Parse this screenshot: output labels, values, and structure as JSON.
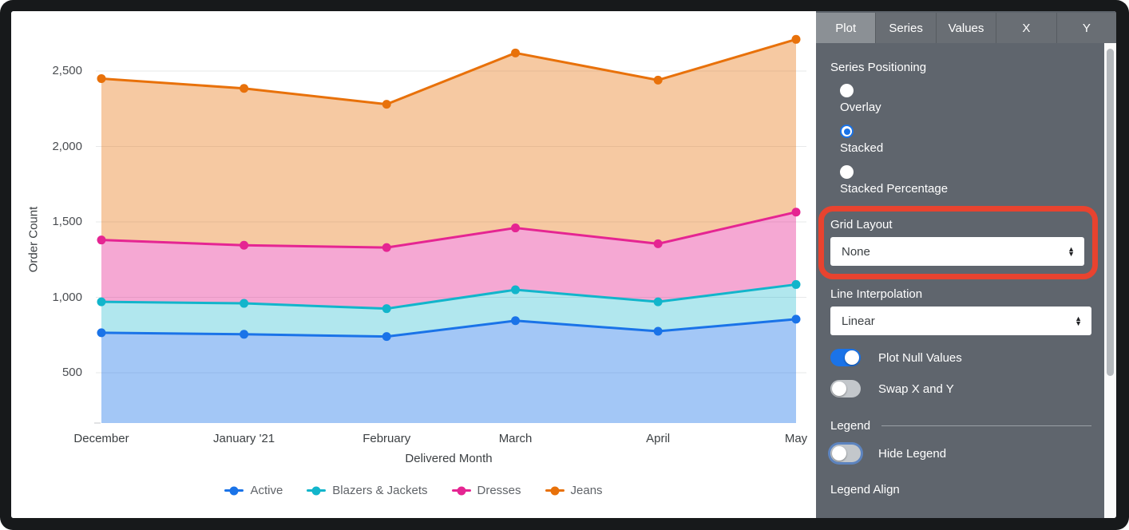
{
  "colors": {
    "accent_blue": "#1a73e8",
    "panel_bg": "#5f656d",
    "highlight_red": "#e8432f",
    "gridline": "#e7e8ea",
    "axis_text": "#3c4043"
  },
  "chart_data": {
    "type": "area",
    "stacked": true,
    "title": "",
    "xlabel": "Delivered Month",
    "ylabel": "Order Count",
    "x": [
      "December",
      "January '21",
      "February",
      "March",
      "April",
      "May"
    ],
    "x_day_offsets": [
      0,
      31,
      62,
      90,
      121,
      151
    ],
    "y_ticks": [
      500,
      1000,
      1500,
      2000,
      2500
    ],
    "ylim": [
      185,
      2780
    ],
    "grid": true,
    "legend_position": "bottom",
    "series": [
      {
        "name": "Active",
        "color": "#1a73e8",
        "fill": "rgba(26,115,232,0.40)",
        "values": [
          765,
          755,
          740,
          845,
          775,
          855
        ]
      },
      {
        "name": "Blazers & Jackets",
        "color": "#12b5cb",
        "fill": "rgba(18,181,203,0.33)",
        "values": [
          205,
          205,
          185,
          205,
          195,
          230
        ]
      },
      {
        "name": "Dresses",
        "color": "#e52592",
        "fill": "rgba(229,37,146,0.40)",
        "values": [
          410,
          385,
          405,
          410,
          385,
          480
        ]
      },
      {
        "name": "Jeans",
        "color": "#e8710a",
        "fill": "rgba(232,113,10,0.38)",
        "values": [
          1070,
          1040,
          950,
          1160,
          1085,
          1145
        ]
      }
    ],
    "stacked_totals": [
      2450,
      2385,
      2280,
      2620,
      2440,
      2710
    ]
  },
  "panel": {
    "tabs": [
      {
        "label": "Plot",
        "active": true
      },
      {
        "label": "Series",
        "active": false
      },
      {
        "label": "Values",
        "active": false
      },
      {
        "label": "X",
        "active": false
      },
      {
        "label": "Y",
        "active": false
      }
    ],
    "series_positioning": {
      "label": "Series Positioning",
      "options": [
        {
          "label": "Overlay",
          "selected": false
        },
        {
          "label": "Stacked",
          "selected": true
        },
        {
          "label": "Stacked Percentage",
          "selected": false
        }
      ]
    },
    "grid_layout": {
      "label": "Grid Layout",
      "value": "None",
      "highlighted": true
    },
    "line_interpolation": {
      "label": "Line Interpolation",
      "value": "Linear"
    },
    "plot_null_values": {
      "label": "Plot Null Values",
      "on": true
    },
    "swap_x_y": {
      "label": "Swap X and Y",
      "on": false
    },
    "legend_header": "Legend",
    "hide_legend": {
      "label": "Hide Legend",
      "on": false,
      "focus_ring": true
    },
    "legend_align_label": "Legend Align"
  }
}
